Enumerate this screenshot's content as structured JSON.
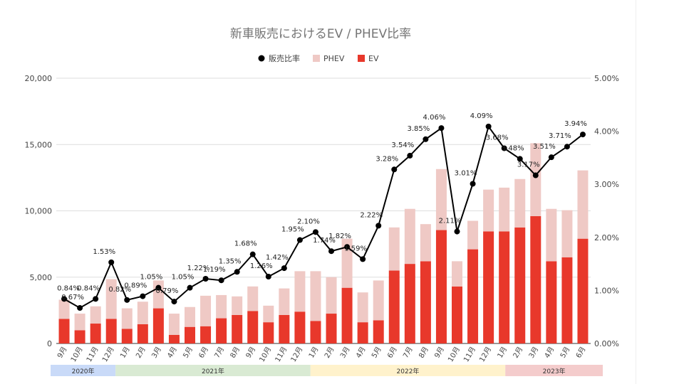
{
  "chart_data": {
    "type": "bar+line",
    "title": "新車販売におけるEV / PHEV比率",
    "legend": {
      "position": "top",
      "items": [
        {
          "name": "販売比率",
          "color": "#000000",
          "shape": "dot"
        },
        {
          "name": "PHEV",
          "color": "#efc9c5",
          "shape": "square"
        },
        {
          "name": "EV",
          "color": "#e8382b",
          "shape": "square"
        }
      ]
    },
    "left_axis": {
      "ylim": [
        0,
        20000
      ],
      "ticks": [
        "0",
        "5,000",
        "10,000",
        "15,000",
        "20,000"
      ],
      "tick_values": [
        0,
        5000,
        10000,
        15000,
        20000
      ]
    },
    "right_axis": {
      "ylim": [
        0,
        5
      ],
      "ticks": [
        "0.00%",
        "1.00%",
        "2.00%",
        "3.00%",
        "4.00%",
        "5.00%"
      ],
      "tick_values": [
        0,
        1,
        2,
        3,
        4,
        5
      ]
    },
    "grid": true,
    "categories": [
      "9月",
      "10月",
      "11月",
      "12月",
      "1月",
      "2月",
      "3月",
      "4月",
      "5月",
      "6月",
      "7月",
      "8月",
      "9月",
      "10月",
      "11月",
      "12月",
      "1月",
      "2月",
      "3月",
      "4月",
      "5月",
      "6月",
      "7月",
      "8月",
      "9月",
      "10月",
      "11月",
      "12月",
      "1月",
      "2月",
      "3月",
      "4月",
      "5月",
      "6月"
    ],
    "series": [
      {
        "name": "EV",
        "type": "bar",
        "stack": "total",
        "color": "#e8382b",
        "values": [
          1850,
          1000,
          1500,
          1850,
          1100,
          1450,
          2650,
          650,
          1250,
          1300,
          1900,
          2150,
          2450,
          1600,
          2150,
          2400,
          1700,
          2250,
          4200,
          1600,
          1750,
          5500,
          6000,
          6200,
          8550,
          4300,
          7100,
          8450,
          8450,
          8750,
          9600,
          6200,
          6500,
          7900
        ]
      },
      {
        "name": "PHEV",
        "type": "bar",
        "stack": "total",
        "color": "#efc9c5",
        "values": [
          1450,
          1250,
          1300,
          3000,
          1550,
          1700,
          2100,
          1600,
          1500,
          2300,
          1750,
          1400,
          1850,
          1250,
          2000,
          3050,
          3750,
          2750,
          3700,
          2250,
          3000,
          3250,
          4150,
          2800,
          4600,
          1900,
          2150,
          3150,
          3300,
          3650,
          5500,
          3950,
          3550,
          5150
        ]
      },
      {
        "name": "販売比率",
        "type": "line",
        "axis": "right",
        "color": "#000000",
        "values": [
          0.84,
          0.67,
          0.84,
          1.53,
          0.82,
          0.89,
          1.05,
          0.79,
          1.05,
          1.22,
          1.19,
          1.35,
          1.68,
          1.26,
          1.42,
          1.95,
          2.1,
          1.74,
          1.82,
          1.59,
          2.22,
          3.28,
          3.54,
          3.85,
          4.06,
          2.11,
          3.01,
          4.09,
          3.68,
          3.48,
          3.17,
          3.51,
          3.71,
          3.94
        ],
        "labels": [
          "0.84%",
          "0.67%",
          "0.84%",
          "1.53%",
          "0.82%",
          "0.89%",
          "1.05%",
          "0.79%",
          "1.05%",
          "1.22%",
          "1.19%",
          "1.35%",
          "1.68%",
          "1.26%",
          "1.42%",
          "1.95%",
          "2.10%",
          "1.74%",
          "1.82%",
          "1.59%",
          "2.22%",
          "3.28%",
          "3.54%",
          "3.85%",
          "4.06%",
          "2.11%",
          "3.01%",
          "4.09%",
          "3.68%",
          "3.48%",
          "3.17%",
          "3.51%",
          "3.71%",
          "3.94%"
        ]
      }
    ],
    "year_groups": [
      {
        "label": "2020年",
        "count": 4,
        "color": "#c9daf8"
      },
      {
        "label": "2021年",
        "count": 12,
        "color": "#d9ead3"
      },
      {
        "label": "2022年",
        "count": 12,
        "color": "#fff2cc"
      },
      {
        "label": "2023年",
        "count": 6,
        "color": "#f4cccc"
      }
    ]
  }
}
